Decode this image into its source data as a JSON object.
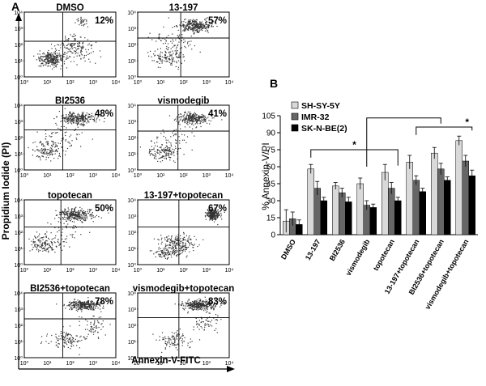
{
  "panel_a": {
    "label": "A",
    "ylabel": "Propidium Iodide (PI)",
    "xlabel": "Annexin-V-FITC",
    "axis_ticks": [
      "10⁰",
      "10¹",
      "10²",
      "10³",
      "10⁴"
    ]
  },
  "panel_b": {
    "label": "B"
  },
  "colors": {
    "sh_sy_5y": "#d9d9d9",
    "imr_32": "#666666",
    "sk_n_be2": "#000000",
    "dots": "#333333"
  },
  "chart_data": [
    {
      "type": "scatter",
      "panel": "A",
      "xlabel": "Annexin-V-FITC",
      "ylabel": "Propidium Iodide (PI)",
      "xscale": "log",
      "yscale": "log",
      "xlim": [
        1,
        10000
      ],
      "ylim": [
        1,
        10000
      ],
      "quadrant_gates": true,
      "plots": [
        {
          "title": "DMSO",
          "upper_right_percent": "12%"
        },
        {
          "title": "13-197",
          "upper_right_percent": "57%"
        },
        {
          "title": "BI2536",
          "upper_right_percent": "48%"
        },
        {
          "title": "vismodegib",
          "upper_right_percent": "41%"
        },
        {
          "title": "topotecan",
          "upper_right_percent": "50%"
        },
        {
          "title": "13-197+topotecan",
          "upper_right_percent": "67%"
        },
        {
          "title": "BI2536+topotecan",
          "upper_right_percent": "78%"
        },
        {
          "title": "vismodegib+topotecan",
          "upper_right_percent": "83%"
        }
      ]
    },
    {
      "type": "bar",
      "panel": "B",
      "ylabel": "% Annexin-V/PI",
      "ylim": [
        0,
        105
      ],
      "yticks": [
        0,
        15,
        30,
        45,
        60,
        75,
        90,
        105
      ],
      "categories": [
        "DMSO",
        "13-197",
        "BI2536",
        "vismodegib",
        "topotecan",
        "13-197+topotecan",
        "BI2536+topotecan",
        "vismodegib+topotecan"
      ],
      "series": [
        {
          "name": "SH-SY-5Y",
          "values": [
            12,
            58,
            43,
            45,
            55,
            64,
            72,
            83
          ],
          "errors": [
            10,
            4,
            3,
            5,
            7,
            6,
            5,
            4
          ]
        },
        {
          "name": "IMR-32",
          "values": [
            14,
            41,
            37,
            26,
            41,
            48,
            58,
            65
          ],
          "errors": [
            6,
            6,
            4,
            4,
            5,
            4,
            5,
            5
          ]
        },
        {
          "name": "SK-N-BE(2)",
          "values": [
            9,
            30,
            29,
            24,
            30,
            38,
            48,
            52
          ],
          "errors": [
            4,
            3,
            4,
            3,
            3,
            3,
            3,
            5
          ]
        }
      ],
      "legend_position": "top-left",
      "annotations": [
        "*",
        "*"
      ]
    }
  ]
}
